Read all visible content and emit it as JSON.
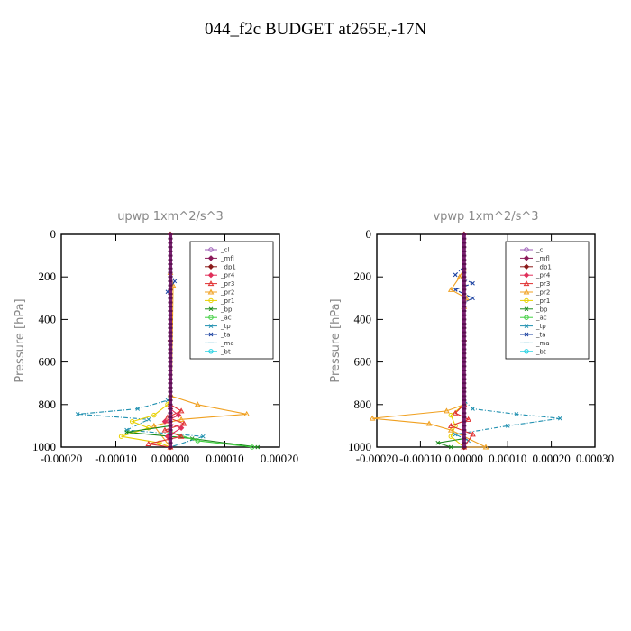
{
  "page": {
    "title": "044_f2c  BUDGET at265E,-17N"
  },
  "colors": {
    "_cl": "#9b59b6",
    "_mfl": "#8b1a5a",
    "_dp1": "#8b1a1a",
    "_pr4": "#e0305a",
    "_pr3": "#e03030",
    "_pr2": "#f0a020",
    "_pr1": "#e8d000",
    "_bp": "#1a8a1a",
    "_ac": "#40d040",
    "_tp": "#2090b0",
    "_ta": "#1a40a0",
    "_ma": "#30a0c0",
    "_bt": "#20d0e0"
  },
  "chart_data": [
    {
      "type": "line",
      "title": "upwp   1xm^2/s^3",
      "ylabel": "Pressure [hPa]",
      "xlim": [
        -0.0002,
        0.0002
      ],
      "ylim": [
        1000,
        0
      ],
      "xticks": [
        "-0.00020",
        "-0.00010",
        "0.00000",
        "0.00010",
        "0.00020"
      ],
      "xtick_values": [
        -0.0002,
        -0.0001,
        0.0,
        0.0001,
        0.0002
      ],
      "yticks": [
        "0",
        "200",
        "400",
        "600",
        "800",
        "1000"
      ],
      "ytick_values": [
        0,
        200,
        400,
        600,
        800,
        1000
      ],
      "legend_position": "top-right",
      "legend": [
        "_cl",
        "_mfl",
        "_dp1",
        "_pr4",
        "_pr3",
        "_pr2",
        "_pr1",
        "_bp",
        "_ac",
        "_tp",
        "_ta",
        "_ma",
        "_bt"
      ],
      "series": [
        {
          "name": "_tp",
          "x": [
            0,
            -5e-06,
            -6e-05,
            -0.00017,
            -4e-05,
            -8e-05,
            6e-05,
            0
          ],
          "y": [
            750,
            780,
            820,
            845,
            870,
            920,
            950,
            1000
          ]
        },
        {
          "name": "_pr2",
          "x": [
            0,
            5e-06,
            2e-06,
            5e-05,
            0.00014,
            2e-05,
            -3e-05,
            0
          ],
          "y": [
            180,
            240,
            760,
            800,
            845,
            870,
            900,
            1000
          ]
        },
        {
          "name": "_pr1",
          "x": [
            0,
            -5e-06,
            -3e-05,
            -7e-05,
            -4e-05,
            -9e-05,
            -2e-05,
            0
          ],
          "y": [
            760,
            800,
            850,
            880,
            910,
            950,
            980,
            1000
          ]
        },
        {
          "name": "_bp",
          "x": [
            0,
            -8e-05,
            4e-05,
            0.00016
          ],
          "y": [
            900,
            930,
            960,
            1000
          ]
        },
        {
          "name": "_ac",
          "x": [
            0,
            5e-05,
            0.00015
          ],
          "y": [
            930,
            970,
            1000
          ]
        },
        {
          "name": "_ta",
          "x": [
            0,
            8e-06,
            -5e-06,
            0
          ],
          "y": [
            180,
            220,
            270,
            300
          ]
        },
        {
          "name": "_pr3",
          "x": [
            0,
            2e-05,
            -5e-06,
            2.5e-05,
            -1e-05,
            2e-05,
            -4e-05,
            0
          ],
          "y": [
            800,
            830,
            860,
            890,
            920,
            950,
            985,
            1000
          ]
        },
        {
          "name": "_pr4",
          "x": [
            0,
            1.5e-05,
            -1e-05,
            2e-05,
            -5e-06,
            0
          ],
          "y": [
            820,
            850,
            880,
            910,
            950,
            1000
          ]
        },
        {
          "name": "_mfl",
          "x": [
            0,
            0,
            0
          ],
          "y": [
            0,
            500,
            1000
          ]
        },
        {
          "name": "_dp1",
          "x": [
            0,
            0,
            0
          ],
          "y": [
            0,
            500,
            1000
          ]
        }
      ]
    },
    {
      "type": "line",
      "title": "vpwp   1xm^2/s^3",
      "ylabel": "Pressure [hPa]",
      "xlim": [
        -0.0002,
        0.0003
      ],
      "ylim": [
        1000,
        0
      ],
      "xticks": [
        "-0.00020",
        "-0.00010",
        "0.00000",
        "0.00010",
        "0.00020",
        "0.00030"
      ],
      "xtick_values": [
        -0.0002,
        -0.0001,
        0.0,
        0.0001,
        0.0002,
        0.0003
      ],
      "yticks": [
        "0",
        "200",
        "400",
        "600",
        "800",
        "1000"
      ],
      "ytick_values": [
        0,
        200,
        400,
        600,
        800,
        1000
      ],
      "legend_position": "top-right",
      "legend": [
        "_cl",
        "_mfl",
        "_dp1",
        "_pr4",
        "_pr3",
        "_pr2",
        "_pr1",
        "_bp",
        "_ac",
        "_tp",
        "_ta",
        "_ma",
        "_bt"
      ],
      "series": [
        {
          "name": "_tp",
          "x": [
            0,
            2e-05,
            0.00012,
            0.00022,
            0.0001,
            -2e-05,
            1e-05,
            0
          ],
          "y": [
            780,
            820,
            845,
            865,
            900,
            940,
            970,
            1000
          ]
        },
        {
          "name": "_pr2",
          "x": [
            0,
            -4e-05,
            -0.00021,
            -8e-05,
            -3e-05,
            5e-05,
            0
          ],
          "y": [
            800,
            830,
            865,
            890,
            920,
            1000,
            1000
          ]
        },
        {
          "name": "_pr1",
          "x": [
            0,
            -3e-05,
            -2e-05,
            -3e-05,
            0
          ],
          "y": [
            800,
            850,
            900,
            950,
            1000
          ]
        },
        {
          "name": "_ta",
          "x": [
            0,
            -2e-05,
            2e-05,
            -2e-05,
            2e-05,
            0
          ],
          "y": [
            150,
            190,
            230,
            260,
            300,
            320
          ]
        },
        {
          "name": "_pr2",
          "x": [
            0,
            -1e-05,
            -3e-05,
            5e-06,
            0
          ],
          "y": [
            160,
            200,
            260,
            300,
            340
          ]
        },
        {
          "name": "_bp",
          "x": [
            0,
            -6e-05,
            -3e-05,
            0
          ],
          "y": [
            960,
            980,
            1000,
            1000
          ]
        },
        {
          "name": "_pr3",
          "x": [
            0,
            -2e-05,
            1e-05,
            -3e-05,
            2e-05,
            0
          ],
          "y": [
            800,
            840,
            870,
            900,
            940,
            1000
          ]
        },
        {
          "name": "_mfl",
          "x": [
            0,
            0,
            0
          ],
          "y": [
            0,
            500,
            1000
          ]
        },
        {
          "name": "_dp1",
          "x": [
            0,
            0,
            0
          ],
          "y": [
            0,
            500,
            1000
          ]
        }
      ]
    }
  ]
}
